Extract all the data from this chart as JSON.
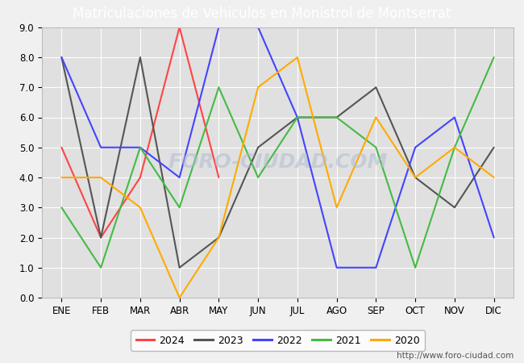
{
  "title": "Matriculaciones de Vehiculos en Monistrol de Montserrat",
  "months": [
    "ENE",
    "FEB",
    "MAR",
    "ABR",
    "MAY",
    "JUN",
    "JUL",
    "AGO",
    "SEP",
    "OCT",
    "NOV",
    "DIC"
  ],
  "series": {
    "2024": {
      "color": "#ff4444",
      "values": [
        5,
        2,
        4,
        9,
        4,
        null,
        null,
        null,
        null,
        null,
        null,
        null
      ]
    },
    "2023": {
      "color": "#555555",
      "values": [
        8,
        2,
        8,
        1,
        2,
        5,
        6,
        6,
        7,
        4,
        3,
        5
      ]
    },
    "2022": {
      "color": "#4444ff",
      "values": [
        8,
        5,
        5,
        4,
        9,
        9,
        6,
        1,
        1,
        5,
        6,
        2
      ]
    },
    "2021": {
      "color": "#44bb44",
      "values": [
        3,
        1,
        5,
        3,
        7,
        4,
        6,
        6,
        5,
        1,
        5,
        8
      ]
    },
    "2020": {
      "color": "#ffaa00",
      "values": [
        4,
        4,
        3,
        0,
        2,
        7,
        8,
        3,
        6,
        4,
        5,
        4
      ]
    }
  },
  "ylim": [
    0.0,
    9.0
  ],
  "yticks": [
    0.0,
    1.0,
    2.0,
    3.0,
    4.0,
    5.0,
    6.0,
    7.0,
    8.0,
    9.0
  ],
  "outer_bg_color": "#f0f0f0",
  "plot_bg_color": "#e0e0e0",
  "header_color": "#4472c4",
  "watermark_text": "FORO-CIUDAD.COM",
  "watermark_color": "#b0bcd0",
  "watermark_alpha": 0.55,
  "url": "http://www.foro-ciudad.com",
  "title_fontsize": 12,
  "tick_fontsize": 8.5,
  "legend_years": [
    "2024",
    "2023",
    "2022",
    "2021",
    "2020"
  ],
  "line_width": 1.5,
  "grid_color": "#ffffff",
  "grid_lw": 0.8,
  "legend_fontsize": 9,
  "url_fontsize": 7.5,
  "url_color": "#555555"
}
